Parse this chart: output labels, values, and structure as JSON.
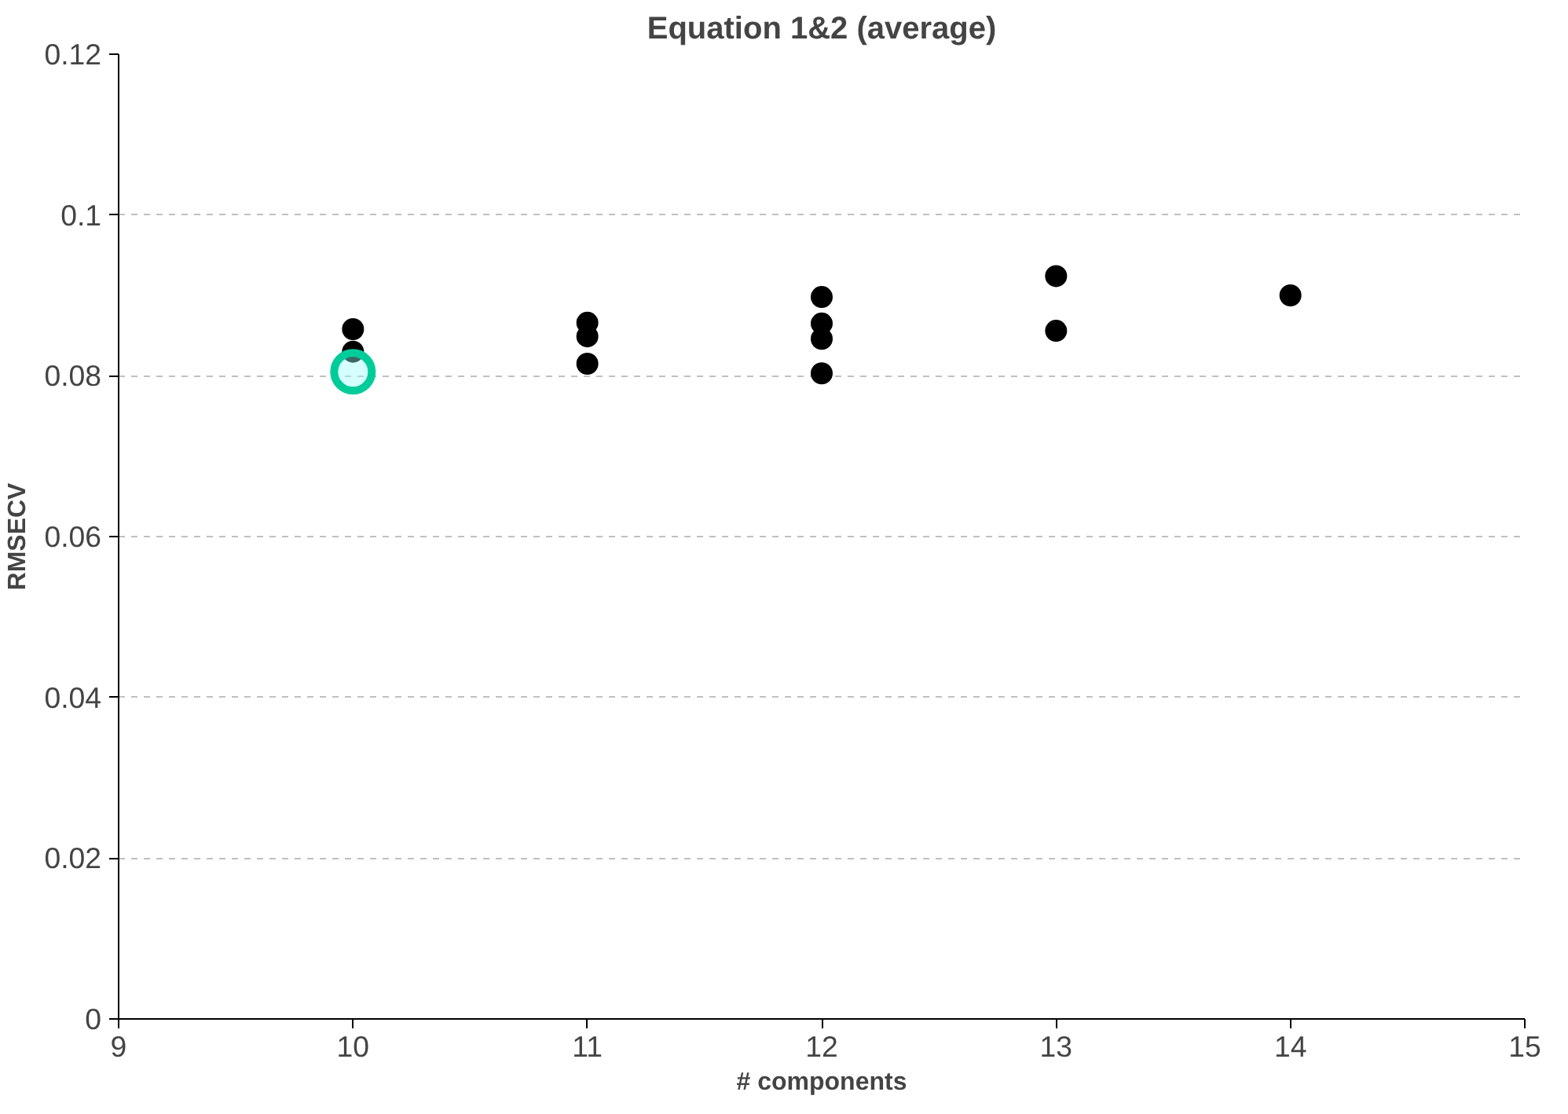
{
  "chart_data": {
    "type": "scatter",
    "title": "Equation 1&2 (average)",
    "xlabel": "# components",
    "ylabel": "RMSECV",
    "xlim": [
      9,
      15
    ],
    "xticks": [
      9,
      10,
      11,
      12,
      13,
      14,
      15
    ],
    "ylim": [
      0,
      0.12
    ],
    "yticks": [
      0,
      0.02,
      0.04,
      0.06,
      0.08,
      0.1,
      0.12
    ],
    "grid": "y",
    "marker": "circle",
    "series": [
      {
        "color": "#000000",
        "x": [
          10,
          10,
          11,
          11,
          11,
          12,
          12,
          12,
          12,
          13,
          13,
          14
        ],
        "values": [
          0.0858,
          0.083,
          0.0866,
          0.0849,
          0.0815,
          0.0898,
          0.0865,
          0.0846,
          0.0803,
          0.0924,
          0.0856,
          0.09
        ]
      },
      {
        "color": "#00cc99",
        "x": [
          10
        ],
        "values": [
          0.0805
        ]
      }
    ]
  }
}
